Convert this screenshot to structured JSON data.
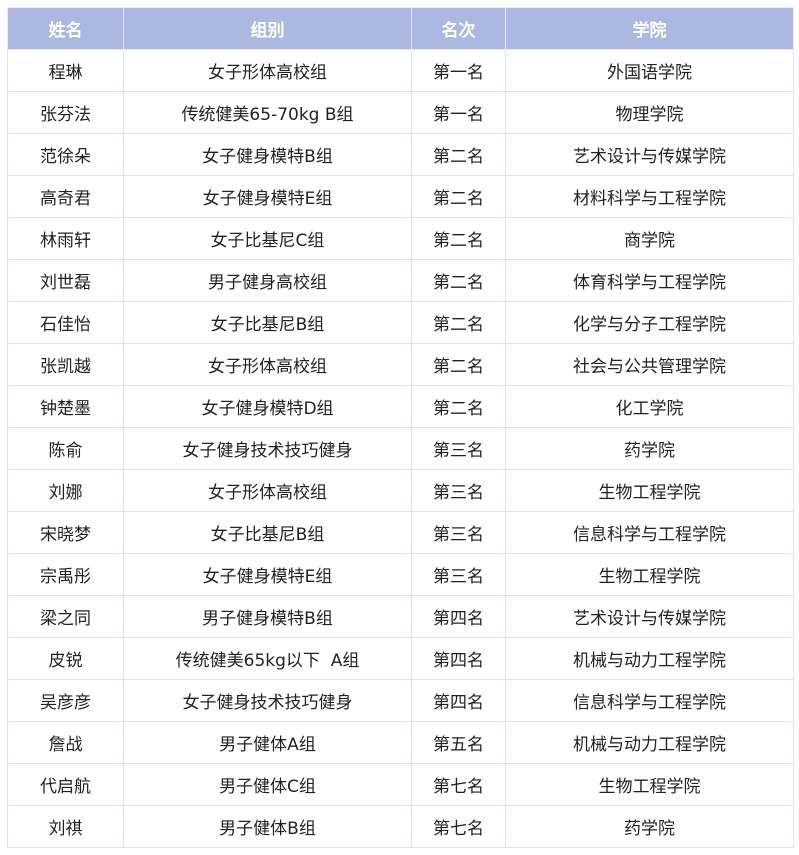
{
  "colors": {
    "header_bg": "#adb8e2",
    "header_text": "#ffffff",
    "border": "#dfe3f3"
  },
  "table": {
    "headers": [
      "姓名",
      "组别",
      "名次",
      "学院"
    ],
    "rows": [
      [
        "程琳",
        "女子形体高校组",
        "第一名",
        "外国语学院"
      ],
      [
        "张芬法",
        "传统健美65-70kg B组",
        "第一名",
        "物理学院"
      ],
      [
        "范徐朵",
        "女子健身模特B组",
        "第二名",
        "艺术设计与传媒学院"
      ],
      [
        "高奇君",
        "女子健身模特E组",
        "第二名",
        "材料科学与工程学院"
      ],
      [
        "林雨轩",
        "女子比基尼C组",
        "第二名",
        "商学院"
      ],
      [
        "刘世磊",
        "男子健身高校组",
        "第二名",
        "体育科学与工程学院"
      ],
      [
        "石佳怡",
        "女子比基尼B组",
        "第二名",
        "化学与分子工程学院"
      ],
      [
        "张凯越",
        "女子形体高校组",
        "第二名",
        "社会与公共管理学院"
      ],
      [
        "钟楚墨",
        "女子健身模特D组",
        "第二名",
        "化工学院"
      ],
      [
        "陈俞",
        "女子健身技术技巧健身",
        "第三名",
        "药学院"
      ],
      [
        "刘娜",
        "女子形体高校组",
        "第三名",
        "生物工程学院"
      ],
      [
        "宋晓梦",
        "女子比基尼B组",
        "第三名",
        "信息科学与工程学院"
      ],
      [
        "宗禹彤",
        "女子健身模特E组",
        "第三名",
        "生物工程学院"
      ],
      [
        "梁之同",
        "男子健身模特B组",
        "第四名",
        "艺术设计与传媒学院"
      ],
      [
        "皮锐",
        "传统健美65kg以下  A组",
        "第四名",
        "机械与动力工程学院"
      ],
      [
        "吴彦彦",
        "女子健身技术技巧健身",
        "第四名",
        "信息科学与工程学院"
      ],
      [
        "詹战",
        "男子健体A组",
        "第五名",
        "机械与动力工程学院"
      ],
      [
        "代启航",
        "男子健体C组",
        "第七名",
        "生物工程学院"
      ],
      [
        "刘祺",
        "男子健体B组",
        "第七名",
        "药学院"
      ]
    ]
  }
}
